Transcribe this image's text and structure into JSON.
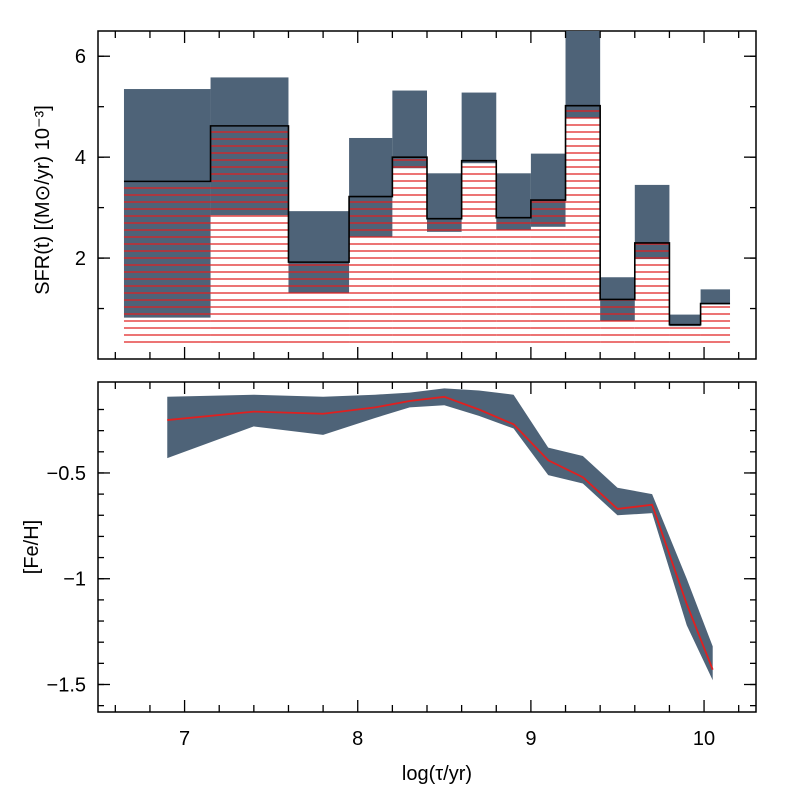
{
  "colors": {
    "band": "#4e6378",
    "hatch": "#e02020",
    "line": "#000000",
    "median": "#e02020"
  },
  "chart_data": [
    {
      "type": "bar",
      "panel": "top",
      "ylabel": "SFR(t)  [(M⊙/yr)  10⁻³]",
      "xlim": [
        6.5,
        10.3
      ],
      "ylim": [
        0.0,
        6.5
      ],
      "yticks": [
        2,
        4,
        6
      ],
      "ytick_labels": [
        "2",
        "4",
        "6"
      ],
      "bins": [
        {
          "x0": 6.65,
          "x1": 7.15,
          "sfr": 3.52,
          "low": 0.82,
          "high": 5.35
        },
        {
          "x0": 7.15,
          "x1": 7.6,
          "sfr": 4.62,
          "low": 2.85,
          "high": 5.58
        },
        {
          "x0": 7.6,
          "x1": 7.95,
          "sfr": 1.92,
          "low": 1.3,
          "high": 2.93
        },
        {
          "x0": 7.95,
          "x1": 8.2,
          "sfr": 3.22,
          "low": 2.42,
          "high": 4.38
        },
        {
          "x0": 8.2,
          "x1": 8.4,
          "sfr": 4.0,
          "low": 3.78,
          "high": 5.32
        },
        {
          "x0": 8.4,
          "x1": 8.6,
          "sfr": 2.78,
          "low": 2.52,
          "high": 3.68
        },
        {
          "x0": 8.6,
          "x1": 8.8,
          "sfr": 3.93,
          "low": 3.88,
          "high": 5.28
        },
        {
          "x0": 8.8,
          "x1": 9.0,
          "sfr": 2.8,
          "low": 2.55,
          "high": 3.68
        },
        {
          "x0": 9.0,
          "x1": 9.2,
          "sfr": 3.15,
          "low": 2.62,
          "high": 4.07
        },
        {
          "x0": 9.2,
          "x1": 9.4,
          "sfr": 5.02,
          "low": 4.78,
          "high": 6.5
        },
        {
          "x0": 9.4,
          "x1": 9.6,
          "sfr": 1.18,
          "low": 0.75,
          "high": 1.62
        },
        {
          "x0": 9.6,
          "x1": 9.8,
          "sfr": 2.3,
          "low": 1.98,
          "high": 3.45
        },
        {
          "x0": 9.8,
          "x1": 9.98,
          "sfr": 0.68,
          "low": 0.65,
          "high": 0.88
        },
        {
          "x0": 9.98,
          "x1": 10.15,
          "sfr": 1.1,
          "low": 1.08,
          "high": 1.38
        }
      ]
    },
    {
      "type": "line",
      "panel": "bottom",
      "xlabel": "log(τ/yr)",
      "ylabel": "[Fe/H]",
      "xlim": [
        6.5,
        10.3
      ],
      "ylim": [
        -1.63,
        -0.07
      ],
      "xticks": [
        7,
        8,
        9,
        10
      ],
      "xtick_labels": [
        "7",
        "8",
        "9",
        "10"
      ],
      "yticks": [
        -0.5,
        -1,
        -1.5
      ],
      "ytick_labels": [
        "−0.5",
        "−1",
        "−1.5"
      ],
      "x": [
        6.9,
        7.4,
        7.8,
        8.1,
        8.3,
        8.5,
        8.7,
        8.9,
        9.1,
        9.3,
        9.5,
        9.7,
        9.9,
        10.05
      ],
      "feh": [
        -0.25,
        -0.21,
        -0.22,
        -0.19,
        -0.16,
        -0.14,
        -0.2,
        -0.27,
        -0.44,
        -0.52,
        -0.67,
        -0.65,
        -1.12,
        -1.43
      ],
      "upper": [
        -0.14,
        -0.13,
        -0.14,
        -0.13,
        -0.12,
        -0.1,
        -0.11,
        -0.13,
        -0.38,
        -0.42,
        -0.57,
        -0.6,
        -1.0,
        -1.32
      ],
      "lower": [
        -0.43,
        -0.28,
        -0.32,
        -0.24,
        -0.19,
        -0.18,
        -0.23,
        -0.29,
        -0.51,
        -0.55,
        -0.7,
        -0.69,
        -1.22,
        -1.48
      ]
    }
  ]
}
